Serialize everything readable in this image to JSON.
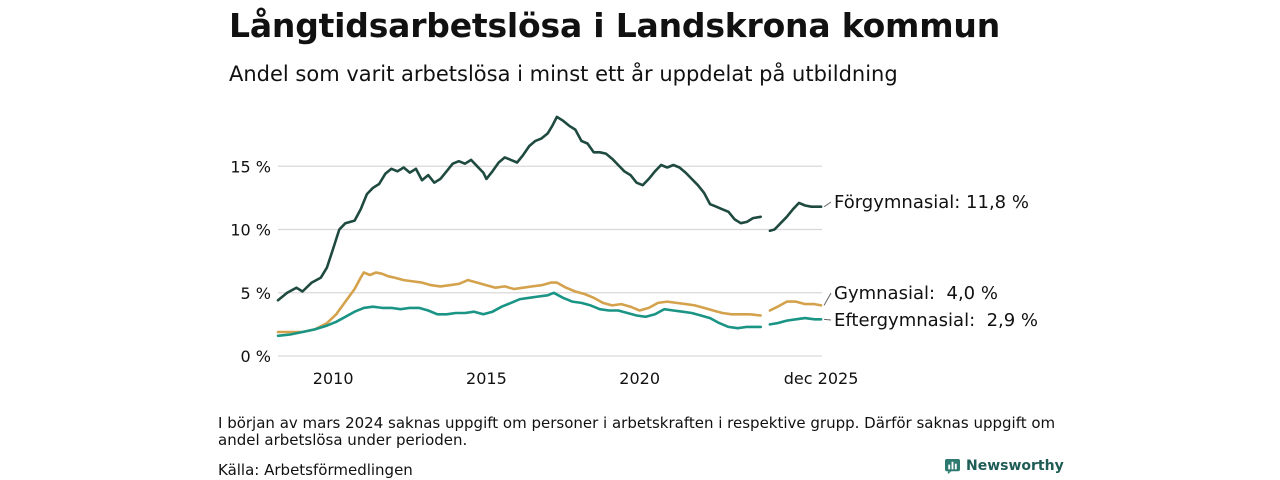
{
  "header": {
    "title": "Långtidsarbetslösa i Landskrona kommun",
    "subtitle": "Andel som varit arbetslösa i minst ett år uppdelat på utbildning"
  },
  "footer": {
    "note": "I början av mars 2024 saknas uppgift om personer i arbetskraften i respektive grupp. Därför saknas uppgift om andel arbetslösa under perioden.",
    "source": "Källa: Arbetsförmedlingen",
    "brand": "Newsworthy"
  },
  "chart_data": {
    "type": "line",
    "title": "Långtidsarbetslösa i Landskrona kommun",
    "subtitle": "Andel som varit arbetslösa i minst ett år uppdelat på utbildning",
    "xlabel": "",
    "ylabel": "",
    "x_range": [
      2008.2,
      2025.95
    ],
    "ylim": [
      0,
      19
    ],
    "y_ticks": [
      0,
      5,
      10,
      15
    ],
    "y_tick_labels": [
      "0 %",
      "5 %",
      "10 %",
      "15 %"
    ],
    "x_ticks": [
      2010,
      2015,
      2020,
      2025.92
    ],
    "x_tick_labels": [
      "2010",
      "2015",
      "2020",
      "dec 2025"
    ],
    "grid": true,
    "gap": [
      2023.95,
      2024.25
    ],
    "series": [
      {
        "name": "Förgymnasial",
        "label": "Förgymnasial: 11,8 %",
        "color": "#1f4a40",
        "points": [
          [
            2008.2,
            4.4
          ],
          [
            2008.5,
            5.0
          ],
          [
            2008.8,
            5.4
          ],
          [
            2009.0,
            5.1
          ],
          [
            2009.3,
            5.8
          ],
          [
            2009.6,
            6.2
          ],
          [
            2009.8,
            7.0
          ],
          [
            2010.0,
            8.5
          ],
          [
            2010.2,
            10.0
          ],
          [
            2010.4,
            10.5
          ],
          [
            2010.7,
            10.7
          ],
          [
            2010.9,
            11.6
          ],
          [
            2011.1,
            12.8
          ],
          [
            2011.3,
            13.3
          ],
          [
            2011.5,
            13.6
          ],
          [
            2011.7,
            14.4
          ],
          [
            2011.9,
            14.8
          ],
          [
            2012.1,
            14.6
          ],
          [
            2012.3,
            14.9
          ],
          [
            2012.5,
            14.5
          ],
          [
            2012.7,
            14.8
          ],
          [
            2012.9,
            13.9
          ],
          [
            2013.1,
            14.3
          ],
          [
            2013.3,
            13.7
          ],
          [
            2013.5,
            14.0
          ],
          [
            2013.7,
            14.6
          ],
          [
            2013.9,
            15.2
          ],
          [
            2014.1,
            15.4
          ],
          [
            2014.3,
            15.2
          ],
          [
            2014.5,
            15.5
          ],
          [
            2014.7,
            15.0
          ],
          [
            2014.9,
            14.5
          ],
          [
            2015.0,
            14.0
          ],
          [
            2015.2,
            14.6
          ],
          [
            2015.4,
            15.3
          ],
          [
            2015.6,
            15.7
          ],
          [
            2015.8,
            15.5
          ],
          [
            2016.0,
            15.3
          ],
          [
            2016.2,
            15.9
          ],
          [
            2016.4,
            16.6
          ],
          [
            2016.6,
            17.0
          ],
          [
            2016.8,
            17.2
          ],
          [
            2017.0,
            17.6
          ],
          [
            2017.15,
            18.2
          ],
          [
            2017.3,
            18.9
          ],
          [
            2017.5,
            18.6
          ],
          [
            2017.7,
            18.2
          ],
          [
            2017.9,
            17.9
          ],
          [
            2018.1,
            17.0
          ],
          [
            2018.3,
            16.8
          ],
          [
            2018.5,
            16.1
          ],
          [
            2018.7,
            16.1
          ],
          [
            2018.9,
            16.0
          ],
          [
            2019.1,
            15.6
          ],
          [
            2019.3,
            15.1
          ],
          [
            2019.5,
            14.6
          ],
          [
            2019.7,
            14.3
          ],
          [
            2019.9,
            13.7
          ],
          [
            2020.1,
            13.5
          ],
          [
            2020.3,
            14.0
          ],
          [
            2020.5,
            14.6
          ],
          [
            2020.7,
            15.1
          ],
          [
            2020.9,
            14.9
          ],
          [
            2021.1,
            15.1
          ],
          [
            2021.3,
            14.9
          ],
          [
            2021.5,
            14.5
          ],
          [
            2021.7,
            14.0
          ],
          [
            2021.9,
            13.5
          ],
          [
            2022.1,
            12.9
          ],
          [
            2022.3,
            12.0
          ],
          [
            2022.5,
            11.8
          ],
          [
            2022.7,
            11.6
          ],
          [
            2022.9,
            11.4
          ],
          [
            2023.1,
            10.8
          ],
          [
            2023.3,
            10.5
          ],
          [
            2023.5,
            10.6
          ],
          [
            2023.7,
            10.9
          ],
          [
            2023.95,
            11.0
          ],
          null,
          [
            2024.25,
            9.9
          ],
          [
            2024.4,
            10.0
          ],
          [
            2024.6,
            10.5
          ],
          [
            2024.8,
            11.0
          ],
          [
            2025.0,
            11.6
          ],
          [
            2025.2,
            12.1
          ],
          [
            2025.4,
            11.9
          ],
          [
            2025.6,
            11.8
          ],
          [
            2025.92,
            11.8
          ]
        ]
      },
      {
        "name": "Gymnasial",
        "label": "Gymnasial:  4,0 %",
        "color": "#d4a24c",
        "points": [
          [
            2008.2,
            1.9
          ],
          [
            2008.6,
            1.9
          ],
          [
            2009.0,
            1.9
          ],
          [
            2009.4,
            2.1
          ],
          [
            2009.8,
            2.6
          ],
          [
            2010.1,
            3.3
          ],
          [
            2010.4,
            4.3
          ],
          [
            2010.7,
            5.3
          ],
          [
            2010.9,
            6.2
          ],
          [
            2011.0,
            6.6
          ],
          [
            2011.2,
            6.4
          ],
          [
            2011.4,
            6.6
          ],
          [
            2011.6,
            6.5
          ],
          [
            2011.8,
            6.3
          ],
          [
            2012.0,
            6.2
          ],
          [
            2012.3,
            6.0
          ],
          [
            2012.6,
            5.9
          ],
          [
            2012.9,
            5.8
          ],
          [
            2013.2,
            5.6
          ],
          [
            2013.5,
            5.5
          ],
          [
            2013.8,
            5.6
          ],
          [
            2014.1,
            5.7
          ],
          [
            2014.4,
            6.0
          ],
          [
            2014.7,
            5.8
          ],
          [
            2015.0,
            5.6
          ],
          [
            2015.3,
            5.4
          ],
          [
            2015.6,
            5.5
          ],
          [
            2015.9,
            5.3
          ],
          [
            2016.2,
            5.4
          ],
          [
            2016.5,
            5.5
          ],
          [
            2016.8,
            5.6
          ],
          [
            2017.1,
            5.8
          ],
          [
            2017.3,
            5.8
          ],
          [
            2017.6,
            5.4
          ],
          [
            2017.9,
            5.1
          ],
          [
            2018.2,
            4.9
          ],
          [
            2018.5,
            4.6
          ],
          [
            2018.8,
            4.2
          ],
          [
            2019.1,
            4.0
          ],
          [
            2019.4,
            4.1
          ],
          [
            2019.7,
            3.9
          ],
          [
            2020.0,
            3.6
          ],
          [
            2020.3,
            3.8
          ],
          [
            2020.6,
            4.2
          ],
          [
            2020.9,
            4.3
          ],
          [
            2021.2,
            4.2
          ],
          [
            2021.5,
            4.1
          ],
          [
            2021.8,
            4.0
          ],
          [
            2022.1,
            3.8
          ],
          [
            2022.4,
            3.6
          ],
          [
            2022.7,
            3.4
          ],
          [
            2023.0,
            3.3
          ],
          [
            2023.3,
            3.3
          ],
          [
            2023.6,
            3.3
          ],
          [
            2023.95,
            3.2
          ],
          null,
          [
            2024.25,
            3.6
          ],
          [
            2024.5,
            3.9
          ],
          [
            2024.8,
            4.3
          ],
          [
            2025.1,
            4.3
          ],
          [
            2025.4,
            4.1
          ],
          [
            2025.7,
            4.1
          ],
          [
            2025.92,
            4.0
          ]
        ]
      },
      {
        "name": "Eftergymnasial",
        "label": "Eftergymnasial:  2,9 %",
        "color": "#1a9484",
        "points": [
          [
            2008.2,
            1.6
          ],
          [
            2008.6,
            1.7
          ],
          [
            2009.0,
            1.9
          ],
          [
            2009.4,
            2.1
          ],
          [
            2009.8,
            2.4
          ],
          [
            2010.1,
            2.7
          ],
          [
            2010.4,
            3.1
          ],
          [
            2010.7,
            3.5
          ],
          [
            2011.0,
            3.8
          ],
          [
            2011.3,
            3.9
          ],
          [
            2011.6,
            3.8
          ],
          [
            2011.9,
            3.8
          ],
          [
            2012.2,
            3.7
          ],
          [
            2012.5,
            3.8
          ],
          [
            2012.8,
            3.8
          ],
          [
            2013.1,
            3.6
          ],
          [
            2013.4,
            3.3
          ],
          [
            2013.7,
            3.3
          ],
          [
            2014.0,
            3.4
          ],
          [
            2014.3,
            3.4
          ],
          [
            2014.6,
            3.5
          ],
          [
            2014.9,
            3.3
          ],
          [
            2015.2,
            3.5
          ],
          [
            2015.5,
            3.9
          ],
          [
            2015.8,
            4.2
          ],
          [
            2016.1,
            4.5
          ],
          [
            2016.4,
            4.6
          ],
          [
            2016.7,
            4.7
          ],
          [
            2017.0,
            4.8
          ],
          [
            2017.2,
            5.0
          ],
          [
            2017.5,
            4.6
          ],
          [
            2017.8,
            4.3
          ],
          [
            2018.1,
            4.2
          ],
          [
            2018.4,
            4.0
          ],
          [
            2018.7,
            3.7
          ],
          [
            2019.0,
            3.6
          ],
          [
            2019.3,
            3.6
          ],
          [
            2019.6,
            3.4
          ],
          [
            2019.9,
            3.2
          ],
          [
            2020.2,
            3.1
          ],
          [
            2020.5,
            3.3
          ],
          [
            2020.8,
            3.7
          ],
          [
            2021.1,
            3.6
          ],
          [
            2021.4,
            3.5
          ],
          [
            2021.7,
            3.4
          ],
          [
            2022.0,
            3.2
          ],
          [
            2022.3,
            3.0
          ],
          [
            2022.6,
            2.6
          ],
          [
            2022.9,
            2.3
          ],
          [
            2023.2,
            2.2
          ],
          [
            2023.5,
            2.3
          ],
          [
            2023.95,
            2.3
          ],
          null,
          [
            2024.25,
            2.5
          ],
          [
            2024.5,
            2.6
          ],
          [
            2024.8,
            2.8
          ],
          [
            2025.1,
            2.9
          ],
          [
            2025.4,
            3.0
          ],
          [
            2025.7,
            2.9
          ],
          [
            2025.92,
            2.9
          ]
        ]
      }
    ]
  }
}
